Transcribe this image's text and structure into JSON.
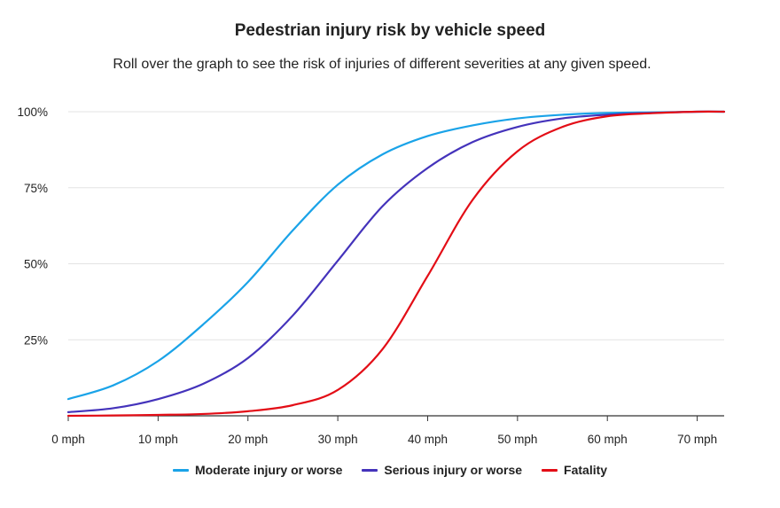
{
  "chart_data": {
    "type": "line",
    "title": "Pedestrian injury risk by vehicle speed",
    "subtitle": "Roll over the graph to see the risk of injuries of different severities at any given speed.",
    "xlabel": "",
    "ylabel": "",
    "xlim": [
      0,
      73
    ],
    "ylim": [
      0,
      100
    ],
    "x_ticks": [
      0,
      10,
      20,
      30,
      40,
      50,
      60,
      70
    ],
    "x_tick_labels": [
      "0 mph",
      "10 mph",
      "20 mph",
      "30 mph",
      "40 mph",
      "50 mph",
      "60 mph",
      "70 mph"
    ],
    "y_ticks": [
      25,
      50,
      75,
      100
    ],
    "y_tick_labels": [
      "25%",
      "50%",
      "75%",
      "100%"
    ],
    "x": [
      0,
      5,
      10,
      15,
      20,
      25,
      30,
      35,
      40,
      45,
      50,
      55,
      60,
      65,
      70,
      73
    ],
    "series": [
      {
        "name": "Moderate injury or worse",
        "color": "#1aa3e8",
        "values": [
          5.5,
          10,
          18,
          30,
          44,
          61,
          76,
          86,
          92,
          95.5,
          97.8,
          99,
          99.6,
          99.8,
          100,
          100
        ]
      },
      {
        "name": "Serious injury or worse",
        "color": "#4433bb",
        "values": [
          1.2,
          2.5,
          5.5,
          10.5,
          19,
          33,
          51,
          69,
          81.5,
          90,
          95,
          97.8,
          99,
          99.6,
          100,
          100
        ]
      },
      {
        "name": "Fatality",
        "color": "#e30d16",
        "values": [
          0,
          0.1,
          0.3,
          0.6,
          1.5,
          3.5,
          8.5,
          22,
          46,
          71,
          87,
          95,
          98.5,
          99.5,
          100,
          100
        ]
      }
    ],
    "legend_position": "bottom-center"
  }
}
